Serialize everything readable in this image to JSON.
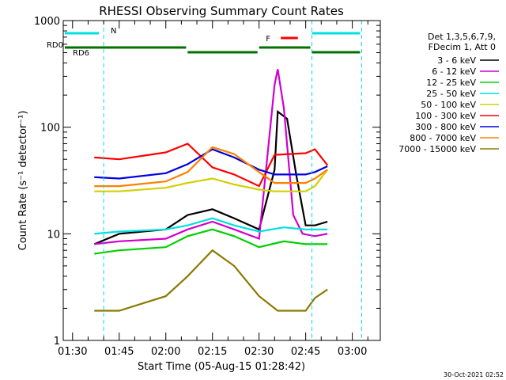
{
  "chart_data": {
    "type": "line",
    "title": "RHESSI Observing Summary Count Rates",
    "xlabel": "Start Time (05-Aug-15 01:28:42)",
    "ylabel": "Count Rate (s⁻¹ detector⁻¹)",
    "y_scale": "log",
    "ylim": [
      1,
      1000
    ],
    "xlim": [
      "01:27",
      "03:09"
    ],
    "x_ticks": [
      "01:30",
      "01:45",
      "02:00",
      "02:15",
      "02:30",
      "02:45",
      "03:00"
    ],
    "y_ticks": [
      "1",
      "10",
      "100",
      "1000"
    ],
    "legend": {
      "placement": "right",
      "header": [
        "Det 1,3,5,6,7,9,",
        "FDecim 1, Att 0"
      ]
    },
    "series": [
      {
        "name": "3 - 6 keV",
        "color": "#000000",
        "x": [
          "01:37",
          "01:45",
          "02:00",
          "02:07",
          "02:15",
          "02:22",
          "02:30",
          "02:35",
          "02:36",
          "02:39",
          "02:42",
          "02:45",
          "02:48",
          "02:52"
        ],
        "y": [
          8,
          10,
          11,
          15,
          17,
          14,
          11,
          40,
          140,
          120,
          35,
          12,
          12,
          13
        ]
      },
      {
        "name": "6 - 12 keV",
        "color": "#d000d0",
        "x": [
          "01:37",
          "01:45",
          "02:00",
          "02:07",
          "02:15",
          "02:22",
          "02:30",
          "02:35",
          "02:36",
          "02:38",
          "02:41",
          "02:44",
          "02:48",
          "02:52"
        ],
        "y": [
          8,
          8.5,
          9,
          11,
          13,
          11,
          9,
          250,
          350,
          150,
          15,
          10,
          9.5,
          10
        ]
      },
      {
        "name": "12 - 25 keV",
        "color": "#00d000",
        "x": [
          "01:37",
          "01:45",
          "02:00",
          "02:07",
          "02:15",
          "02:22",
          "02:30",
          "02:38",
          "02:45",
          "02:48",
          "02:52"
        ],
        "y": [
          6.5,
          7,
          7.5,
          9.5,
          11,
          9.5,
          7.5,
          8.5,
          8,
          8,
          8
        ]
      },
      {
        "name": "25 - 50 keV",
        "color": "#00e0e0",
        "x": [
          "01:37",
          "01:45",
          "02:00",
          "02:07",
          "02:15",
          "02:22",
          "02:30",
          "02:38",
          "02:45",
          "02:48",
          "02:52"
        ],
        "y": [
          10,
          10.5,
          11,
          12,
          14,
          12,
          10.5,
          11.5,
          11,
          11,
          11
        ]
      },
      {
        "name": "50 - 100 keV",
        "color": "#d0d000",
        "x": [
          "01:37",
          "01:45",
          "02:00",
          "02:07",
          "02:15",
          "02:22",
          "02:30",
          "02:35",
          "02:45",
          "02:48",
          "02:52"
        ],
        "y": [
          25,
          25,
          27,
          30,
          33,
          29,
          26,
          25,
          25,
          28,
          40
        ]
      },
      {
        "name": "100 - 300 keV",
        "color": "#ff0000",
        "x": [
          "01:37",
          "01:45",
          "02:00",
          "02:07",
          "02:15",
          "02:22",
          "02:30",
          "02:35",
          "02:45",
          "02:48",
          "02:52"
        ],
        "y": [
          52,
          50,
          58,
          70,
          42,
          36,
          28,
          55,
          57,
          62,
          44
        ]
      },
      {
        "name": "300 - 800 keV",
        "color": "#0000e0",
        "x": [
          "01:37",
          "01:45",
          "02:00",
          "02:07",
          "02:15",
          "02:22",
          "02:30",
          "02:35",
          "02:45",
          "02:48",
          "02:52"
        ],
        "y": [
          34,
          33,
          37,
          45,
          62,
          52,
          40,
          36,
          36,
          38,
          43
        ]
      },
      {
        "name": "800 - 7000 keV",
        "color": "#ff8000",
        "x": [
          "01:37",
          "01:45",
          "02:00",
          "02:07",
          "02:15",
          "02:22",
          "02:30",
          "02:35",
          "02:45",
          "02:48",
          "02:52"
        ],
        "y": [
          28,
          28,
          31,
          38,
          65,
          56,
          38,
          30,
          30,
          33,
          40
        ]
      },
      {
        "name": "7000 - 15000 keV",
        "color": "#8b7a00",
        "x": [
          "01:37",
          "01:45",
          "02:00",
          "02:07",
          "02:15",
          "02:22",
          "02:30",
          "02:36",
          "02:45",
          "02:48",
          "02:52"
        ],
        "y": [
          1.9,
          1.9,
          2.6,
          4,
          7,
          5,
          2.6,
          1.9,
          1.9,
          2.5,
          3
        ]
      }
    ],
    "annotations": {
      "vlines": [
        {
          "x": "01:40",
          "color": "#00e0e0"
        },
        {
          "x": "02:47",
          "color": "#00e0e0"
        },
        {
          "x": "03:03",
          "color": "#00e0e0"
        }
      ],
      "bars": [
        {
          "label": "N",
          "color": "#00e0e0",
          "segments": [
            [
              "01:27",
              "01:39"
            ],
            [
              "02:47",
              "03:03"
            ]
          ]
        },
        {
          "label": "F",
          "color": "#ff0000",
          "segments": [
            [
              "02:37",
              "02:43"
            ]
          ]
        },
        {
          "label": "RD0",
          "color": "#007000",
          "segments": [
            [
              "01:27",
              "02:07"
            ],
            [
              "02:30",
              "02:47"
            ]
          ]
        },
        {
          "label": "RD6",
          "color": "#007000",
          "segments": [
            [
              "01:27",
              "02:07"
            ],
            [
              "02:07",
              "02:30"
            ],
            [
              "02:47",
              "03:03"
            ]
          ]
        }
      ]
    },
    "footer_date": "30-Oct-2021 02:52"
  }
}
